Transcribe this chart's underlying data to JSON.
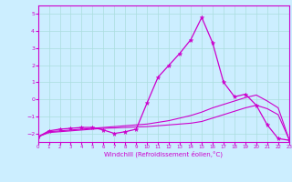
{
  "xlabel": "Windchill (Refroidissement éolien,°C)",
  "xlim": [
    0,
    23
  ],
  "ylim": [
    -2.5,
    5.5
  ],
  "yticks": [
    -2,
    -1,
    0,
    1,
    2,
    3,
    4,
    5
  ],
  "xticks": [
    0,
    1,
    2,
    3,
    4,
    5,
    6,
    7,
    8,
    9,
    10,
    11,
    12,
    13,
    14,
    15,
    16,
    17,
    18,
    19,
    20,
    21,
    22,
    23
  ],
  "background_color": "#cceeff",
  "grid_color": "#aadddd",
  "line_color": "#cc00cc",
  "line1_x": [
    0,
    1,
    2,
    3,
    4,
    5,
    6,
    7,
    8,
    9,
    10,
    11,
    12,
    13,
    14,
    15,
    16,
    17,
    18,
    19,
    20,
    21,
    22,
    23
  ],
  "line1_y": [
    -2.2,
    -1.85,
    -1.75,
    -1.7,
    -1.65,
    -1.65,
    -1.8,
    -2.0,
    -1.9,
    -1.75,
    -0.2,
    1.3,
    2.0,
    2.7,
    3.5,
    4.8,
    3.3,
    1.0,
    0.15,
    0.3,
    -0.35,
    -1.5,
    -2.3,
    -2.4
  ],
  "line2_x": [
    0,
    1,
    2,
    3,
    4,
    5,
    6,
    7,
    8,
    9,
    10,
    11,
    12,
    13,
    14,
    15,
    16,
    17,
    18,
    19,
    20,
    21,
    22,
    23
  ],
  "line2_y": [
    -2.2,
    -1.9,
    -1.85,
    -1.8,
    -1.75,
    -1.7,
    -1.65,
    -1.6,
    -1.55,
    -1.5,
    -1.45,
    -1.35,
    -1.25,
    -1.1,
    -0.95,
    -0.75,
    -0.5,
    -0.3,
    -0.1,
    0.1,
    0.25,
    -0.1,
    -0.5,
    -2.35
  ],
  "line3_x": [
    0,
    1,
    2,
    3,
    4,
    5,
    6,
    7,
    8,
    9,
    10,
    11,
    12,
    13,
    14,
    15,
    16,
    17,
    18,
    19,
    20,
    21,
    22,
    23
  ],
  "line3_y": [
    -2.2,
    -1.95,
    -1.9,
    -1.85,
    -1.8,
    -1.75,
    -1.7,
    -1.68,
    -1.65,
    -1.62,
    -1.6,
    -1.55,
    -1.5,
    -1.45,
    -1.4,
    -1.3,
    -1.1,
    -0.9,
    -0.7,
    -0.5,
    -0.35,
    -0.55,
    -0.9,
    -2.35
  ]
}
